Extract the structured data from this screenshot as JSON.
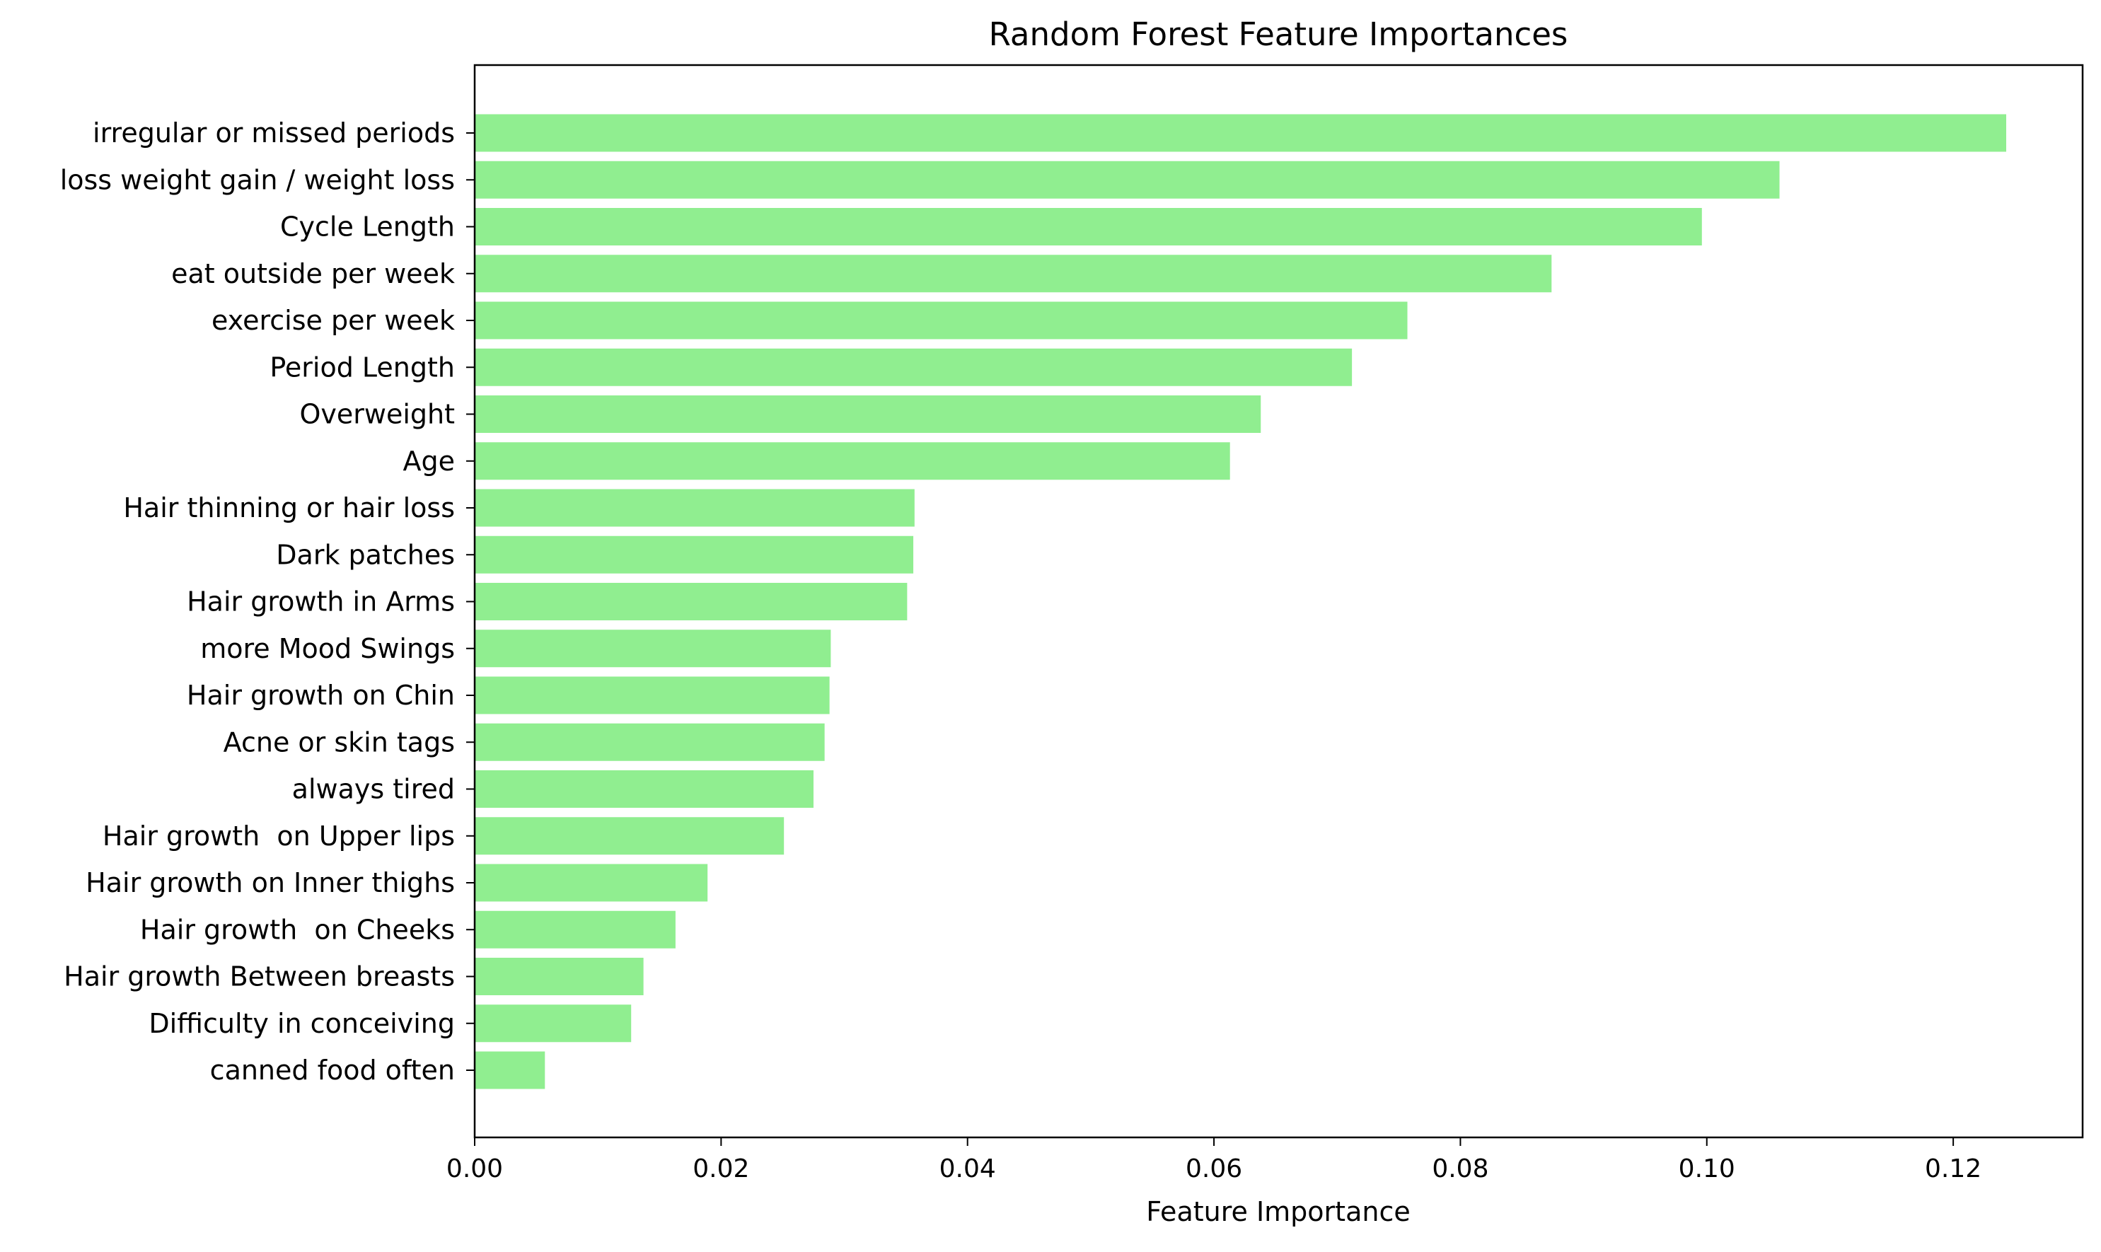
{
  "chart_data": {
    "type": "bar",
    "orientation": "horizontal",
    "title": "Random Forest Feature Importances",
    "xlabel": "Feature Importance",
    "ylabel": "",
    "xlim": [
      0,
      0.1305
    ],
    "xticks": [
      0.0,
      0.02,
      0.04,
      0.06,
      0.08,
      0.1,
      0.12
    ],
    "xtick_labels": [
      "0.00",
      "0.02",
      "0.04",
      "0.06",
      "0.08",
      "0.10",
      "0.12"
    ],
    "grid": false,
    "bar_color": "#90ee90",
    "categories": [
      "irregular or missed periods",
      "loss weight gain / weight loss",
      "Cycle Length",
      "eat outside per week",
      "exercise per week",
      "Period Length",
      "Overweight",
      "Age",
      "Hair thinning or hair loss",
      "Dark patches",
      "Hair growth in Arms",
      "more Mood Swings",
      "Hair growth on Chin",
      "Acne or skin tags",
      "always tired",
      "Hair growth  on Upper lips",
      "Hair growth on Inner thighs",
      "Hair growth  on Cheeks",
      "Hair growth Between breasts",
      "Difficulty in conceiving",
      "canned food often"
    ],
    "values": [
      0.1243,
      0.1059,
      0.0996,
      0.0874,
      0.0757,
      0.0712,
      0.0638,
      0.0613,
      0.0357,
      0.0356,
      0.0351,
      0.0289,
      0.0288,
      0.0284,
      0.0275,
      0.0251,
      0.0189,
      0.0163,
      0.0137,
      0.0127,
      0.0057
    ]
  }
}
